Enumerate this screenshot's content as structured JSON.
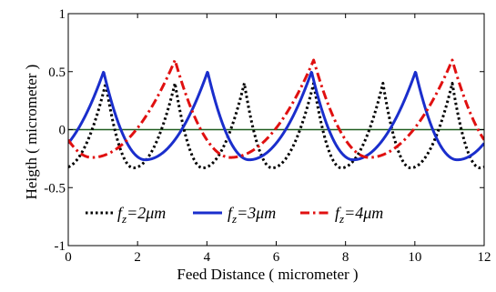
{
  "chart_data": {
    "type": "line",
    "title": "",
    "xlabel": "Feed Distance ( micrometer )",
    "ylabel": "Heigth ( micrometer )",
    "xlim": [
      0,
      12
    ],
    "ylim": [
      -1,
      1
    ],
    "xticks": [
      0,
      2,
      4,
      6,
      8,
      10,
      12
    ],
    "yticks": [
      -1,
      -0.5,
      0,
      0.5,
      1
    ],
    "xtick_labels": [
      "0",
      "2",
      "4",
      "6",
      "8",
      "10",
      "12"
    ],
    "ytick_labels": [
      "-1",
      "-0.5",
      "0",
      "0.5",
      "1"
    ],
    "grid": false,
    "legend_position": "bottom",
    "baseline": {
      "y": 0,
      "color": "#1f5c1f"
    },
    "series": [
      {
        "legend_base": "f",
        "legend_sub": "z",
        "legend_suffix": "=2μm",
        "color": "#000000",
        "style": "dotted",
        "peaks": [
          -0.92,
          1.08,
          3.08,
          5.08,
          7.08,
          9.08,
          11.08,
          13.08
        ],
        "peak_value": 0.4,
        "min_value": -0.33,
        "left_offset": -0.2,
        "rise_width": 0.6
      },
      {
        "legend_base": "f",
        "legend_sub": "z",
        "legend_suffix": "=3μm",
        "color": "#1a2ecc",
        "style": "solid",
        "peaks": [
          -1.98,
          1.02,
          4.02,
          7.02,
          10.02,
          13.02
        ],
        "peak_value": 0.5,
        "min_value": -0.26,
        "left_offset": -0.3,
        "rise_width": 0.6
      },
      {
        "legend_base": "f",
        "legend_sub": "z",
        "legend_suffix": "=4μm",
        "color": "#e01010",
        "style": "dashdot",
        "peaks": [
          -0.92,
          3.08,
          7.08,
          11.08,
          15.08
        ],
        "peak_value": 0.6,
        "min_value": -0.24,
        "left_offset": -0.4,
        "rise_width": 0.65
      }
    ]
  }
}
